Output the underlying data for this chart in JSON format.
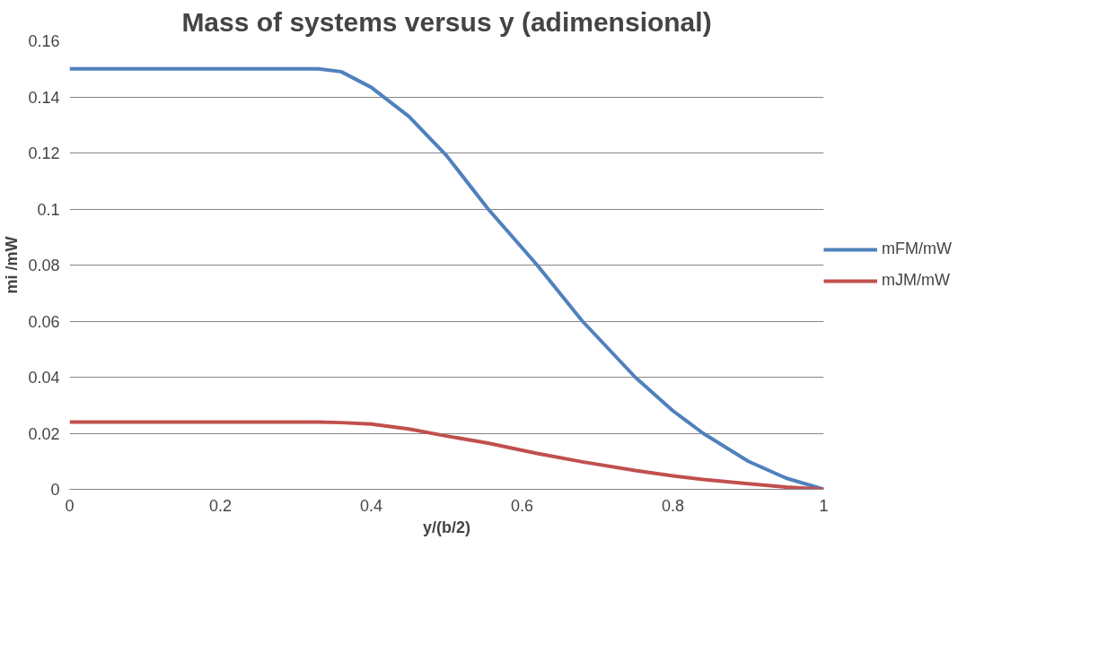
{
  "chart_data": {
    "type": "line",
    "title": "Mass of systems versus y (adimensional)",
    "xlabel": "y/(b/2)",
    "ylabel": "mi /mW",
    "x": [
      0,
      0.1,
      0.2,
      0.3,
      0.33,
      0.36,
      0.4,
      0.45,
      0.5,
      0.555,
      0.62,
      0.68,
      0.75,
      0.8,
      0.84,
      0.9,
      0.95,
      1
    ],
    "series": [
      {
        "name": "mFM/mW",
        "color": "#4f81bd",
        "values": [
          0.15,
          0.15,
          0.15,
          0.15,
          0.15,
          0.149,
          0.1434,
          0.133,
          0.119,
          0.1,
          0.08,
          0.06,
          0.04,
          0.028,
          0.02,
          0.01,
          0.004,
          0
        ]
      },
      {
        "name": "mJM/mW",
        "color": "#c0504d",
        "values": [
          0.024,
          0.024,
          0.024,
          0.024,
          0.024,
          0.0238,
          0.0233,
          0.0215,
          0.019,
          0.0165,
          0.0128,
          0.0098,
          0.0067,
          0.0048,
          0.0035,
          0.002,
          0.0008,
          0
        ]
      }
    ],
    "xlim": [
      0,
      1
    ],
    "xticks": [
      0,
      0.2,
      0.4,
      0.6,
      0.8,
      1
    ],
    "ylim": [
      0,
      0.16
    ],
    "yticks": [
      0,
      0.02,
      0.04,
      0.06,
      0.08,
      0.1,
      0.12,
      0.14,
      0.16
    ],
    "grid": "y",
    "legend": "right",
    "marker": "none",
    "line_style": "solid"
  }
}
